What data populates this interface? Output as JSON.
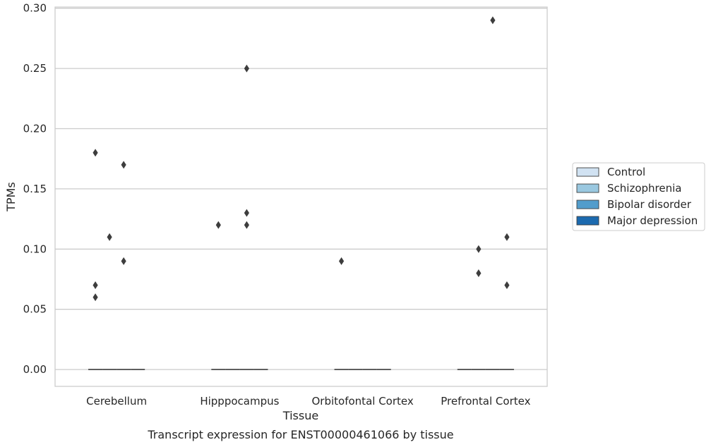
{
  "chart_data": {
    "type": "box",
    "title": "Transcript expression for ENST00000461066 by tissue",
    "xlabel": "Tissue",
    "ylabel": "TPMs",
    "ylim": [
      -0.014,
      0.301
    ],
    "yticks": [
      "0.00",
      "0.05",
      "0.10",
      "0.15",
      "0.20",
      "0.25",
      "0.30"
    ],
    "grid": "horizontal",
    "legend_position": "right",
    "categories": [
      "Cerebellum",
      "Hipppocampus",
      "Orbitofontal Cortex",
      "Prefrontal Cortex"
    ],
    "series": [
      {
        "name": "Control",
        "color": "#d1e2f2",
        "medians": [
          0,
          0,
          0,
          0
        ],
        "outliers": [
          [
            0.18,
            0.07,
            0.06
          ],
          [
            0.12
          ],
          [
            0.09
          ],
          []
        ]
      },
      {
        "name": "Schizophrenia",
        "color": "#9ac8e0",
        "medians": [
          0,
          0,
          0,
          0
        ],
        "outliers": [
          [
            0.11
          ],
          [],
          [],
          [
            0.1,
            0.08
          ]
        ]
      },
      {
        "name": "Bipolar disorder",
        "color": "#529dcc",
        "medians": [
          0,
          0,
          0,
          0
        ],
        "outliers": [
          [
            0.17,
            0.09
          ],
          [
            0.25,
            0.13,
            0.12
          ],
          [],
          [
            0.29
          ]
        ]
      },
      {
        "name": "Major depression",
        "color": "#1c6aaf",
        "medians": [
          0,
          0,
          0,
          0
        ],
        "outliers": [
          [],
          [],
          [],
          [
            0.11,
            0.07
          ]
        ]
      }
    ]
  }
}
